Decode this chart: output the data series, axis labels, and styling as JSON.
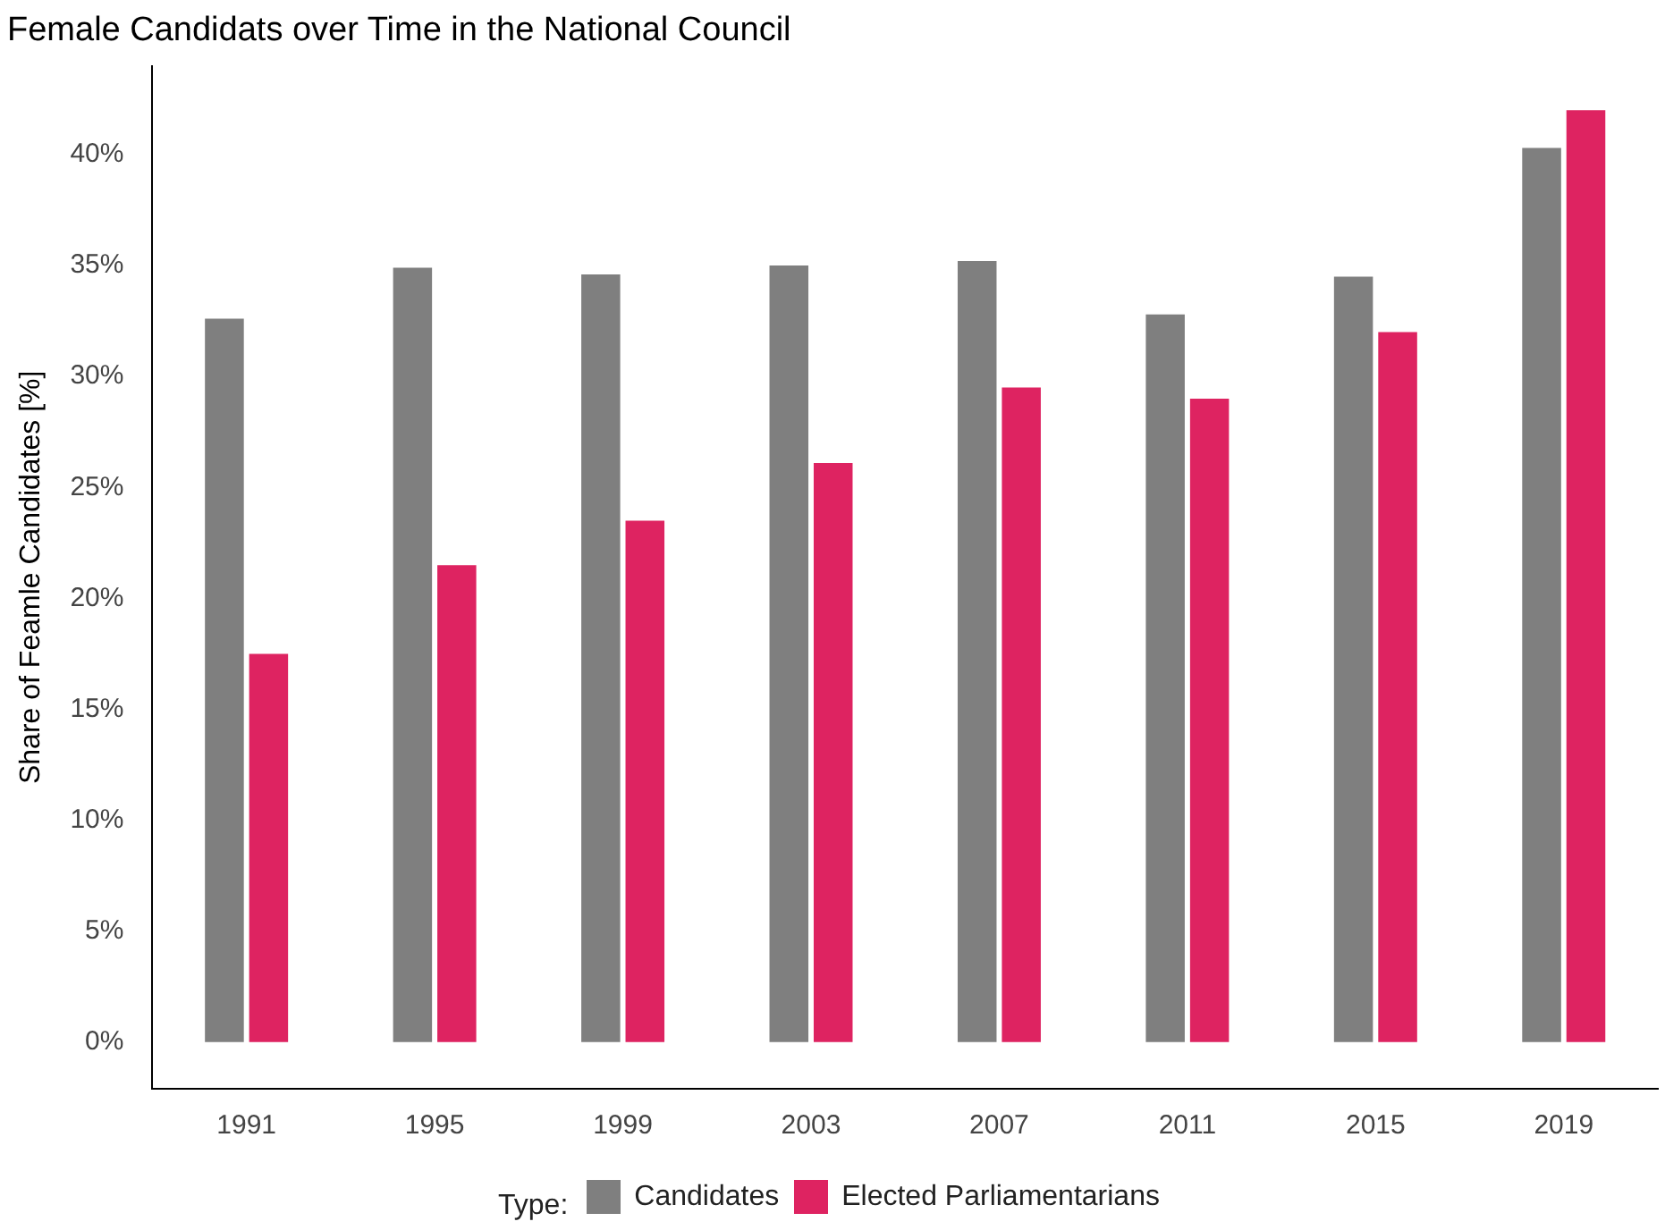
{
  "chart_data": {
    "type": "bar",
    "title": "Female Candidats over Time in the National Council",
    "ylabel": "Share of Feamle Candidates [%]",
    "legend_title": "Type:",
    "categories": [
      "1991",
      "1995",
      "1999",
      "2003",
      "2007",
      "2011",
      "2015",
      "2019"
    ],
    "series": [
      {
        "name": "Candidates",
        "color": "#7f7f7f",
        "values": [
          32.6,
          34.9,
          34.6,
          35.0,
          35.2,
          32.8,
          34.5,
          40.3
        ]
      },
      {
        "name": "Elected Parliamentarians",
        "color": "#de2361",
        "values": [
          17.5,
          21.5,
          23.5,
          26.1,
          29.5,
          29.0,
          32.0,
          42.0
        ]
      }
    ],
    "ylim": [
      -2.1,
      44
    ],
    "yticks": [
      {
        "value": 0,
        "label": "0%"
      },
      {
        "value": 5,
        "label": "5%"
      },
      {
        "value": 10,
        "label": "10%"
      },
      {
        "value": 15,
        "label": "15%"
      },
      {
        "value": 20,
        "label": "20%"
      },
      {
        "value": 25,
        "label": "25%"
      },
      {
        "value": 30,
        "label": "30%"
      },
      {
        "value": 35,
        "label": "35%"
      },
      {
        "value": 40,
        "label": "40%"
      }
    ],
    "grid": false,
    "legend": "bottom"
  }
}
